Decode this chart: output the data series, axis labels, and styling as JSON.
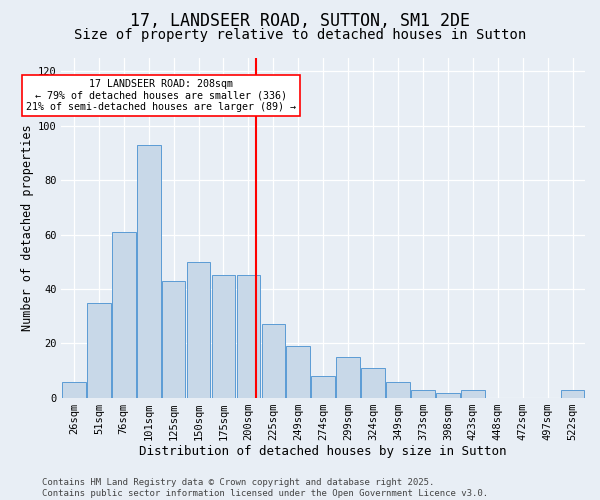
{
  "title": "17, LANDSEER ROAD, SUTTON, SM1 2DE",
  "subtitle": "Size of property relative to detached houses in Sutton",
  "xlabel": "Distribution of detached houses by size in Sutton",
  "ylabel": "Number of detached properties",
  "categories": [
    "26sqm",
    "51sqm",
    "76sqm",
    "101sqm",
    "125sqm",
    "150sqm",
    "175sqm",
    "200sqm",
    "225sqm",
    "249sqm",
    "274sqm",
    "299sqm",
    "324sqm",
    "349sqm",
    "373sqm",
    "398sqm",
    "423sqm",
    "448sqm",
    "472sqm",
    "497sqm",
    "522sqm"
  ],
  "counts": [
    6,
    35,
    61,
    93,
    43,
    50,
    45,
    45,
    27,
    19,
    8,
    15,
    11,
    6,
    3,
    2,
    3,
    0,
    0,
    0,
    3
  ],
  "bar_color": "#c8d8e8",
  "bar_edge_color": "#5b9bd5",
  "bg_color": "#e8eef5",
  "annotation_text": "17 LANDSEER ROAD: 208sqm\n← 79% of detached houses are smaller (336)\n21% of semi-detached houses are larger (89) →",
  "ref_bar_index": 7,
  "ref_line_color": "red",
  "ylim": [
    0,
    125
  ],
  "yticks": [
    0,
    20,
    40,
    60,
    80,
    100,
    120
  ],
  "footer": "Contains HM Land Registry data © Crown copyright and database right 2025.\nContains public sector information licensed under the Open Government Licence v3.0.",
  "title_fontsize": 12,
  "subtitle_fontsize": 10,
  "xlabel_fontsize": 9,
  "ylabel_fontsize": 8.5,
  "tick_fontsize": 7.5,
  "footer_fontsize": 6.5
}
